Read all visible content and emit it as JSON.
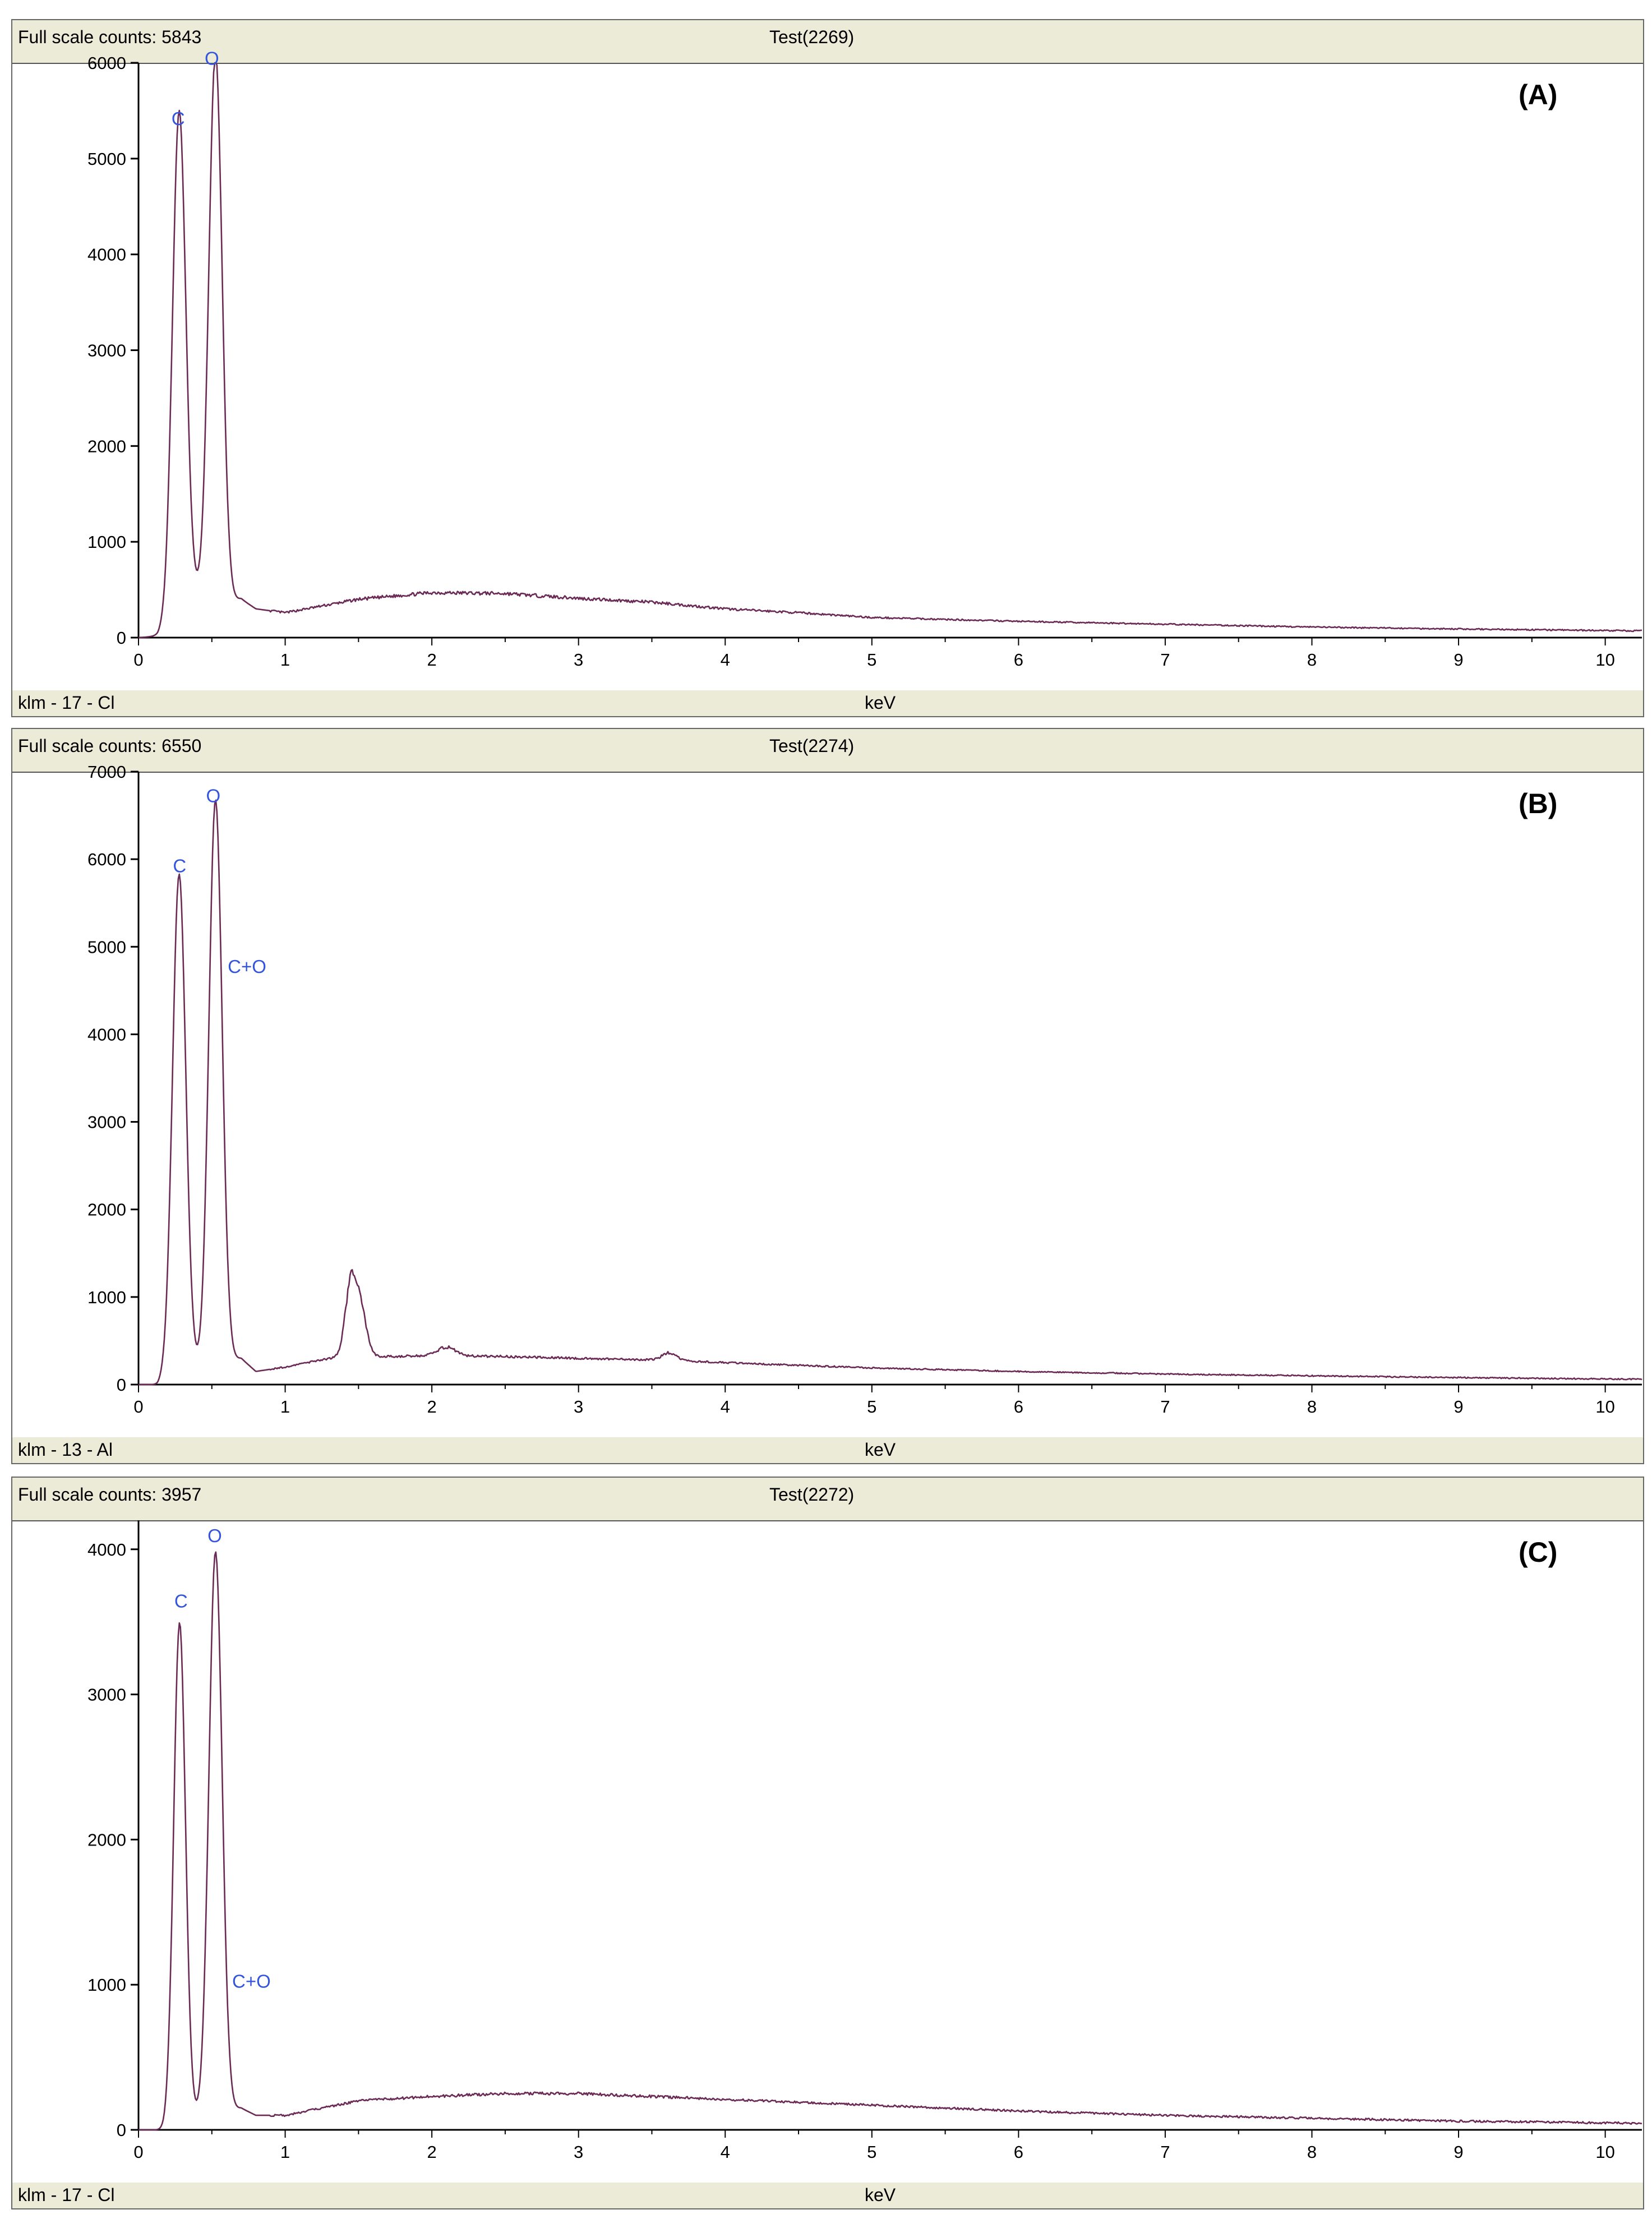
{
  "chart_data": [
    {
      "type": "line",
      "full_scale": "Full scale counts: 5843",
      "test_label": "Test(2269)",
      "sample_label": "klm - 17 - Cl",
      "panel_label": "(A)",
      "xlabel": "keV",
      "ylabel": "",
      "xlim": [
        0,
        10.25
      ],
      "ylim": [
        0,
        6000
      ],
      "x_ticks": [
        "0",
        "1",
        "2",
        "3",
        "4",
        "5",
        "6",
        "7",
        "8",
        "9",
        "10"
      ],
      "y_ticks": [
        "0",
        "1000",
        "2000",
        "3000",
        "4000",
        "5000",
        "6000"
      ],
      "grid": false,
      "line_color": "#6b2a55",
      "annotation_color": "#3355dd",
      "peaks": [
        {
          "x": 0.277,
          "y": 5200,
          "w": 0.045
        },
        {
          "x": 0.525,
          "y": 5700,
          "w": 0.045
        },
        {
          "x": 0.38,
          "y": 250,
          "w": 0.12
        }
      ],
      "background": [
        [
          0.0,
          0
        ],
        [
          0.13,
          0
        ],
        [
          0.2,
          80
        ],
        [
          0.7,
          400
        ],
        [
          0.8,
          300
        ],
        [
          1.0,
          260
        ],
        [
          1.5,
          400
        ],
        [
          2.0,
          470
        ],
        [
          2.5,
          460
        ],
        [
          3.0,
          410
        ],
        [
          3.5,
          370
        ],
        [
          4.0,
          300
        ],
        [
          4.5,
          260
        ],
        [
          5.0,
          210
        ],
        [
          6.0,
          170
        ],
        [
          7.0,
          140
        ],
        [
          8.0,
          110
        ],
        [
          9.0,
          90
        ],
        [
          10.25,
          70
        ]
      ],
      "annotations": [
        {
          "text": "C",
          "x": 0.27,
          "y": 5350
        },
        {
          "text": "O",
          "x": 0.5,
          "y": 5980
        }
      ]
    },
    {
      "type": "line",
      "full_scale": "Full scale counts: 6550",
      "test_label": "Test(2274)",
      "sample_label": "klm - 13 - Al",
      "panel_label": "(B)",
      "xlabel": "keV",
      "ylabel": "",
      "xlim": [
        0,
        10.25
      ],
      "ylim": [
        0,
        7000
      ],
      "x_ticks": [
        "0",
        "1",
        "2",
        "3",
        "4",
        "5",
        "6",
        "7",
        "8",
        "9",
        "10"
      ],
      "y_ticks": [
        "0",
        "1000",
        "2000",
        "3000",
        "4000",
        "5000",
        "6000",
        "7000"
      ],
      "grid": false,
      "line_color": "#6b2a55",
      "annotation_color": "#3355dd",
      "peaks": [
        {
          "x": 0.277,
          "y": 5700,
          "w": 0.045
        },
        {
          "x": 0.525,
          "y": 6450,
          "w": 0.045
        },
        {
          "x": 1.45,
          "y": 850,
          "w": 0.04
        },
        {
          "x": 1.52,
          "y": 450,
          "w": 0.04
        },
        {
          "x": 2.1,
          "y": 100,
          "w": 0.06
        },
        {
          "x": 3.62,
          "y": 90,
          "w": 0.05
        }
      ],
      "background": [
        [
          0.0,
          0
        ],
        [
          0.13,
          0
        ],
        [
          0.2,
          100
        ],
        [
          0.7,
          300
        ],
        [
          0.8,
          150
        ],
        [
          1.0,
          200
        ],
        [
          1.3,
          300
        ],
        [
          1.7,
          320
        ],
        [
          2.0,
          330
        ],
        [
          2.5,
          320
        ],
        [
          3.0,
          300
        ],
        [
          3.5,
          280
        ],
        [
          4.0,
          250
        ],
        [
          4.5,
          220
        ],
        [
          5.0,
          190
        ],
        [
          6.0,
          150
        ],
        [
          7.0,
          120
        ],
        [
          8.0,
          100
        ],
        [
          9.0,
          80
        ],
        [
          10.25,
          60
        ]
      ],
      "annotations": [
        {
          "text": "C",
          "x": 0.28,
          "y": 5850
        },
        {
          "text": "O",
          "x": 0.51,
          "y": 6650
        },
        {
          "text": "C+O",
          "x": 0.74,
          "y": 4700
        }
      ]
    },
    {
      "type": "line",
      "full_scale": "Full scale counts: 3957",
      "test_label": "Test(2272)",
      "sample_label": "klm - 17 - Cl",
      "panel_label": "(C)",
      "xlabel": "keV",
      "ylabel": "",
      "xlim": [
        0,
        10.25
      ],
      "ylim": [
        0,
        4200
      ],
      "x_ticks": [
        "0",
        "1",
        "2",
        "3",
        "4",
        "5",
        "6",
        "7",
        "8",
        "9",
        "10"
      ],
      "y_ticks": [
        "0",
        "1000",
        "2000",
        "3000",
        "4000"
      ],
      "grid": false,
      "line_color": "#6b2a55",
      "annotation_color": "#3355dd",
      "peaks": [
        {
          "x": 0.28,
          "y": 3430,
          "w": 0.04
        },
        {
          "x": 0.525,
          "y": 3870,
          "w": 0.045
        }
      ],
      "background": [
        [
          0.0,
          0
        ],
        [
          0.17,
          0
        ],
        [
          0.25,
          60
        ],
        [
          0.7,
          150
        ],
        [
          0.8,
          100
        ],
        [
          1.0,
          100
        ],
        [
          1.5,
          200
        ],
        [
          2.0,
          230
        ],
        [
          2.5,
          250
        ],
        [
          3.0,
          250
        ],
        [
          3.5,
          230
        ],
        [
          4.0,
          210
        ],
        [
          4.5,
          190
        ],
        [
          5.0,
          170
        ],
        [
          6.0,
          130
        ],
        [
          7.0,
          100
        ],
        [
          8.0,
          80
        ],
        [
          9.0,
          60
        ],
        [
          10.25,
          45
        ]
      ],
      "annotations": [
        {
          "text": "C",
          "x": 0.29,
          "y": 3600
        },
        {
          "text": "O",
          "x": 0.52,
          "y": 4050
        },
        {
          "text": "C+O",
          "x": 0.77,
          "y": 980
        }
      ]
    }
  ]
}
